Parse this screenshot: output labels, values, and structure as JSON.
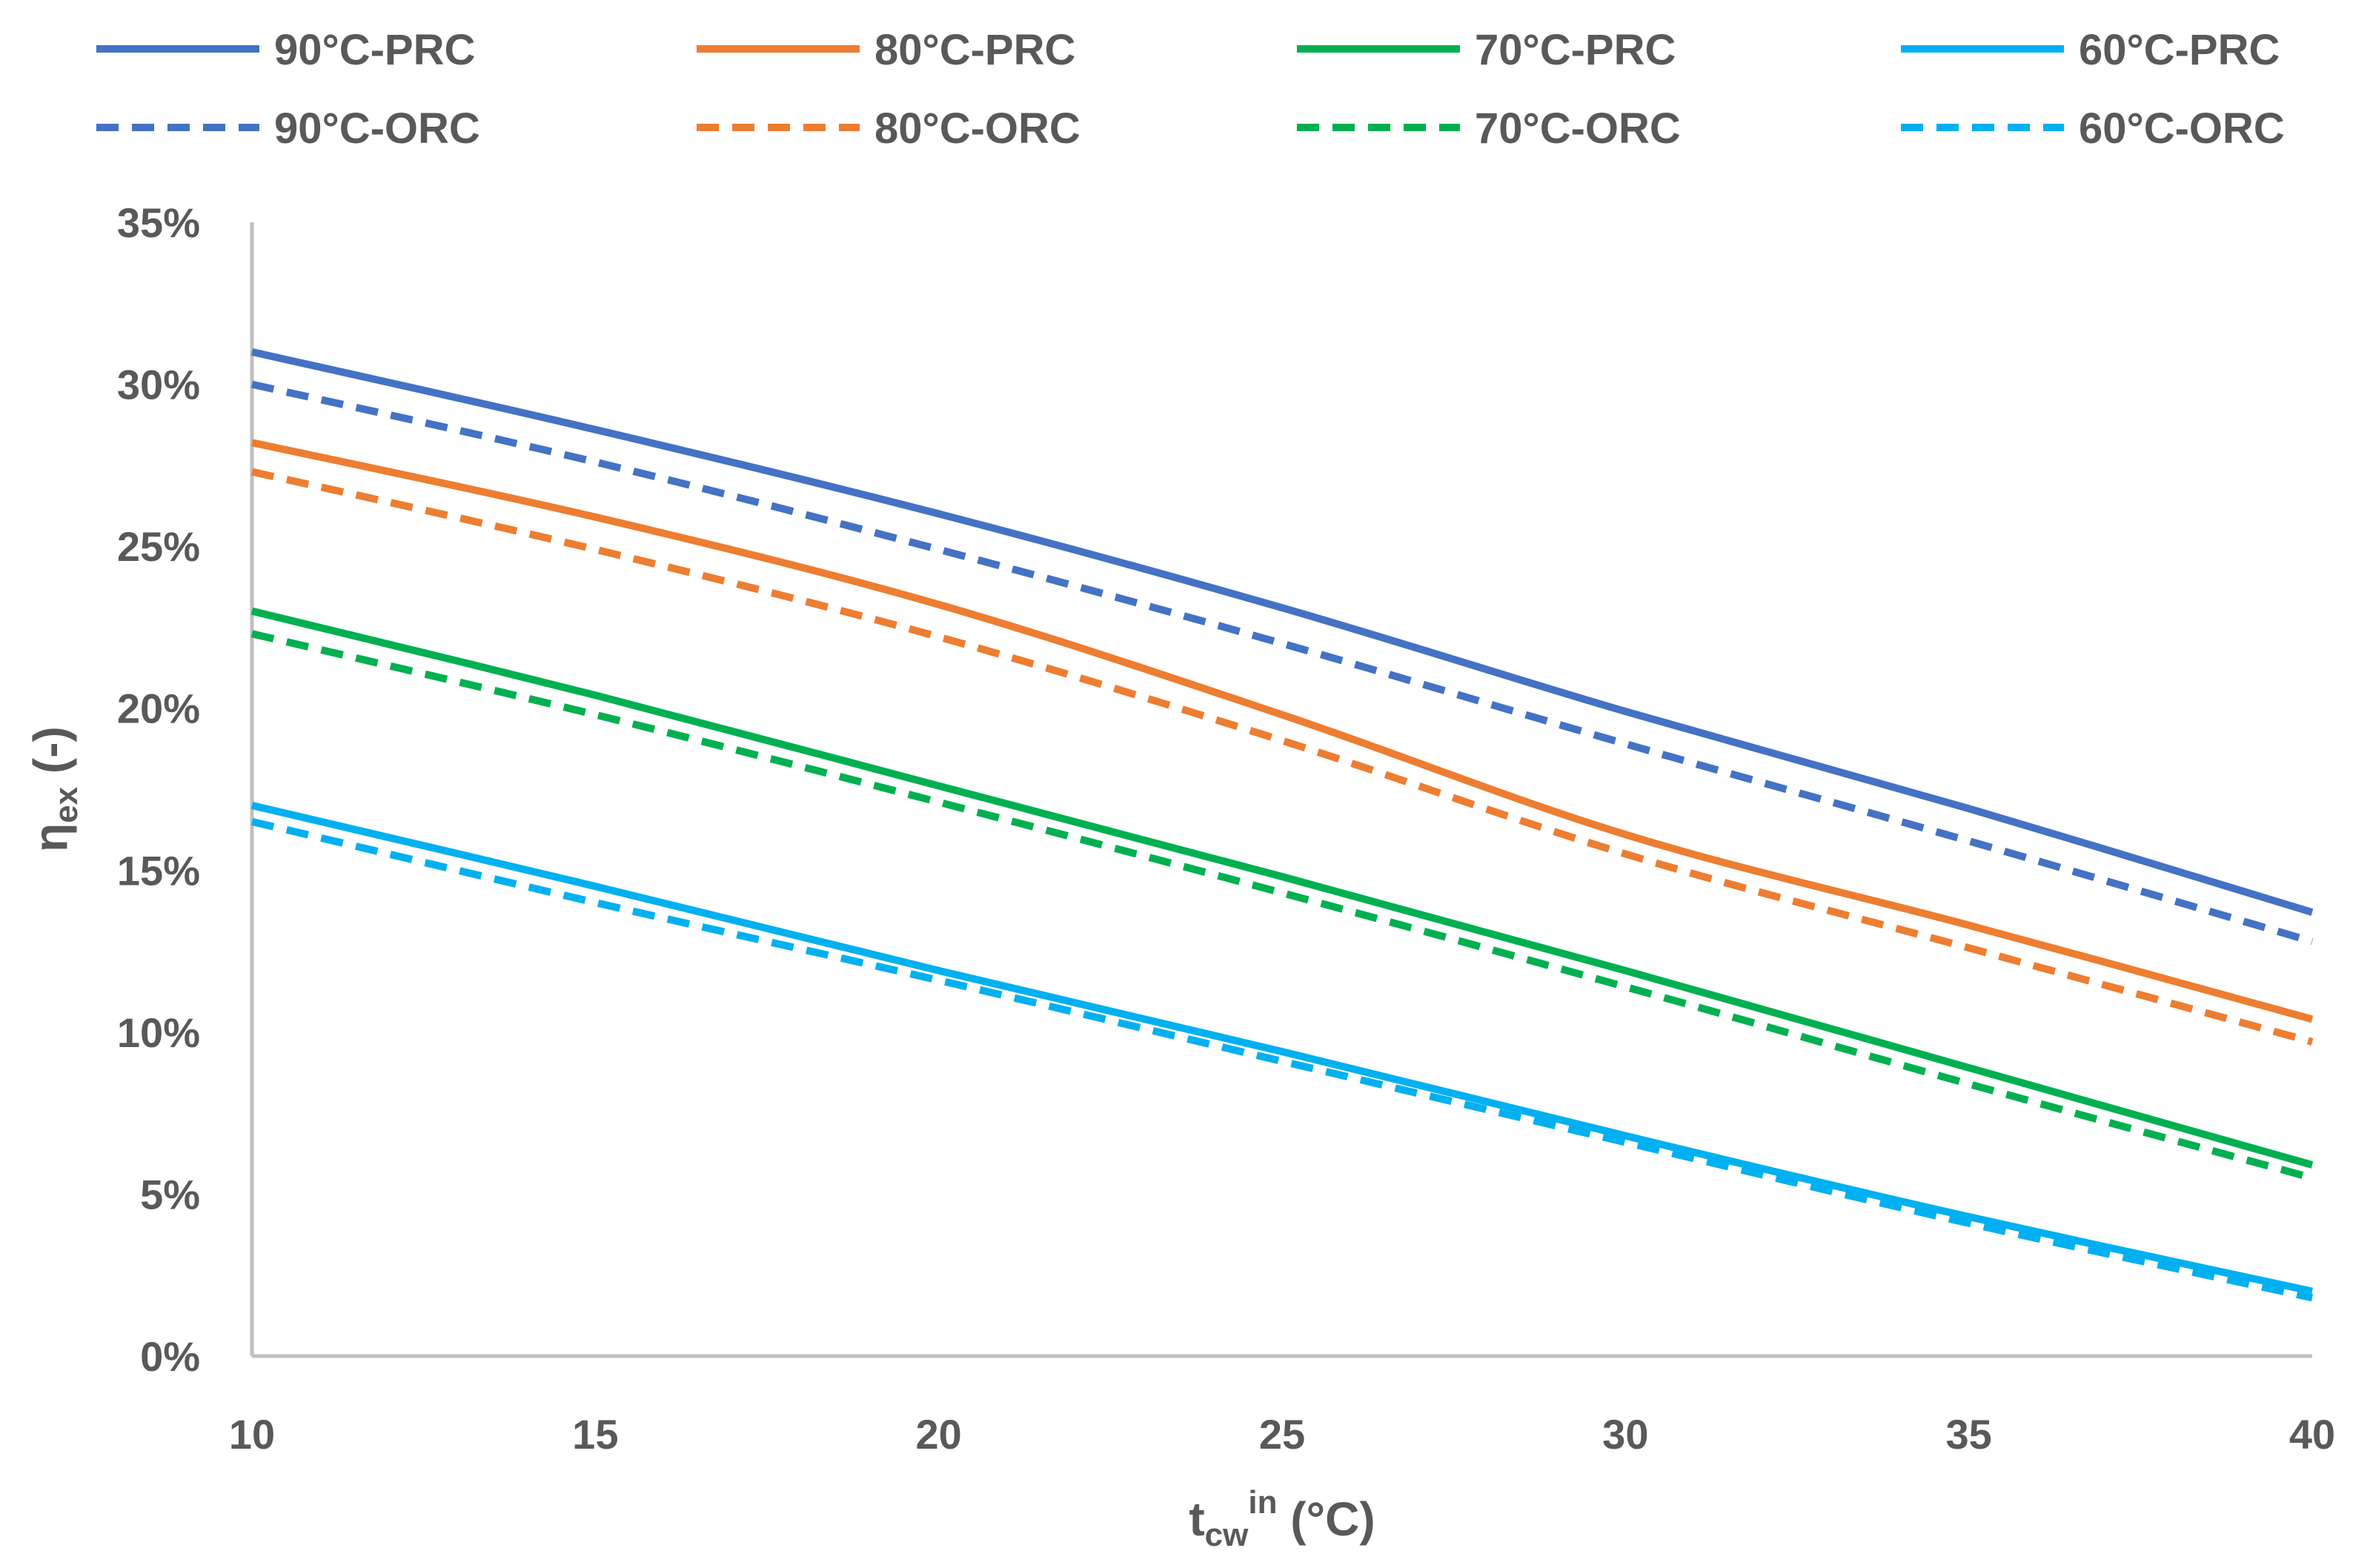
{
  "chart_data": {
    "type": "line",
    "title": "",
    "xlabel": {
      "base": "t",
      "sub": "cw",
      "sup": "in",
      "tail": " (°C)"
    },
    "ylabel": {
      "base": "η",
      "sub": "ex",
      "tail": " (-)"
    },
    "xlim": [
      10,
      40
    ],
    "ylim": [
      0,
      35
    ],
    "x_ticks": [
      "10",
      "15",
      "20",
      "25",
      "30",
      "35",
      "40"
    ],
    "y_ticks": [
      "0%",
      "5%",
      "10%",
      "15%",
      "20%",
      "25%",
      "30%",
      "35%"
    ],
    "grid": false,
    "legend_position": "top",
    "x": [
      10,
      15,
      20,
      25,
      30,
      35,
      40
    ],
    "series": [
      {
        "name": "90°C-PRC",
        "color": "#4472C4",
        "dash": "solid",
        "values": [
          31.0,
          28.6,
          26.0,
          23.1,
          19.9,
          16.9,
          13.7
        ]
      },
      {
        "name": "80°C-PRC",
        "color": "#ED7D31",
        "dash": "solid",
        "values": [
          28.2,
          25.9,
          23.2,
          19.8,
          16.1,
          13.3,
          10.4
        ]
      },
      {
        "name": "70°C-PRC",
        "color": "#00B050",
        "dash": "solid",
        "values": [
          23.0,
          20.4,
          17.6,
          14.8,
          11.9,
          8.9,
          5.9
        ]
      },
      {
        "name": "60°C-PRC",
        "color": "#00B0F0",
        "dash": "solid",
        "values": [
          17.0,
          14.5,
          11.9,
          9.4,
          6.8,
          4.3,
          2.0
        ]
      },
      {
        "name": "90°C-ORC",
        "color": "#4472C4",
        "dash": "dashed",
        "values": [
          30.0,
          27.6,
          24.9,
          22.0,
          18.9,
          15.9,
          12.8
        ]
      },
      {
        "name": "80°C-ORC",
        "color": "#ED7D31",
        "dash": "dashed",
        "values": [
          27.3,
          24.9,
          22.2,
          19.0,
          15.5,
          12.6,
          9.7
        ]
      },
      {
        "name": "70°C-ORC",
        "color": "#00B050",
        "dash": "dashed",
        "values": [
          22.3,
          19.8,
          17.1,
          14.3,
          11.4,
          8.4,
          5.5
        ]
      },
      {
        "name": "60°C-ORC",
        "color": "#00B0F0",
        "dash": "dashed",
        "values": [
          16.5,
          14.0,
          11.6,
          9.1,
          6.6,
          4.1,
          1.8
        ]
      }
    ]
  }
}
